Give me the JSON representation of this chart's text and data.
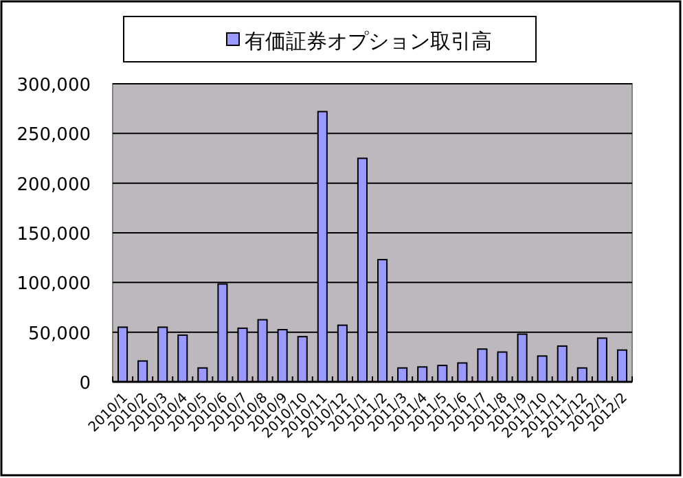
{
  "chart_data": {
    "type": "bar",
    "categories": [
      "2010/1",
      "2010/2",
      "2010/3",
      "2010/4",
      "2010/5",
      "2010/6",
      "2010/7",
      "2010/8",
      "2010/9",
      "2010/10",
      "2010/11",
      "2010/12",
      "2011/1",
      "2011/2",
      "2011/3",
      "2011/4",
      "2011/5",
      "2011/6",
      "2011/7",
      "2011/8",
      "2011/9",
      "2011/10",
      "2011/11",
      "2011/12",
      "2012/1",
      "2012/2"
    ],
    "series": [
      {
        "name": "有価証券オプション取引高",
        "color": "#9999ff",
        "values": [
          55000,
          21000,
          55000,
          47000,
          14000,
          98500,
          54000,
          62500,
          52500,
          45500,
          272000,
          57000,
          225000,
          123000,
          14000,
          15000,
          16500,
          19000,
          33000,
          30000,
          48000,
          26000,
          36000,
          14000,
          44000,
          32000
        ]
      }
    ],
    "ylim": [
      0,
      300000
    ],
    "yticks": [
      {
        "value": 0,
        "label": "0"
      },
      {
        "value": 50000,
        "label": "50,000"
      },
      {
        "value": 100000,
        "label": "100,000"
      },
      {
        "value": 150000,
        "label": "150,000"
      },
      {
        "value": 200000,
        "label": "200,000"
      },
      {
        "value": 250000,
        "label": "250,000"
      },
      {
        "value": 300000,
        "label": "300,000"
      }
    ],
    "grid": "y",
    "legend": "top"
  }
}
